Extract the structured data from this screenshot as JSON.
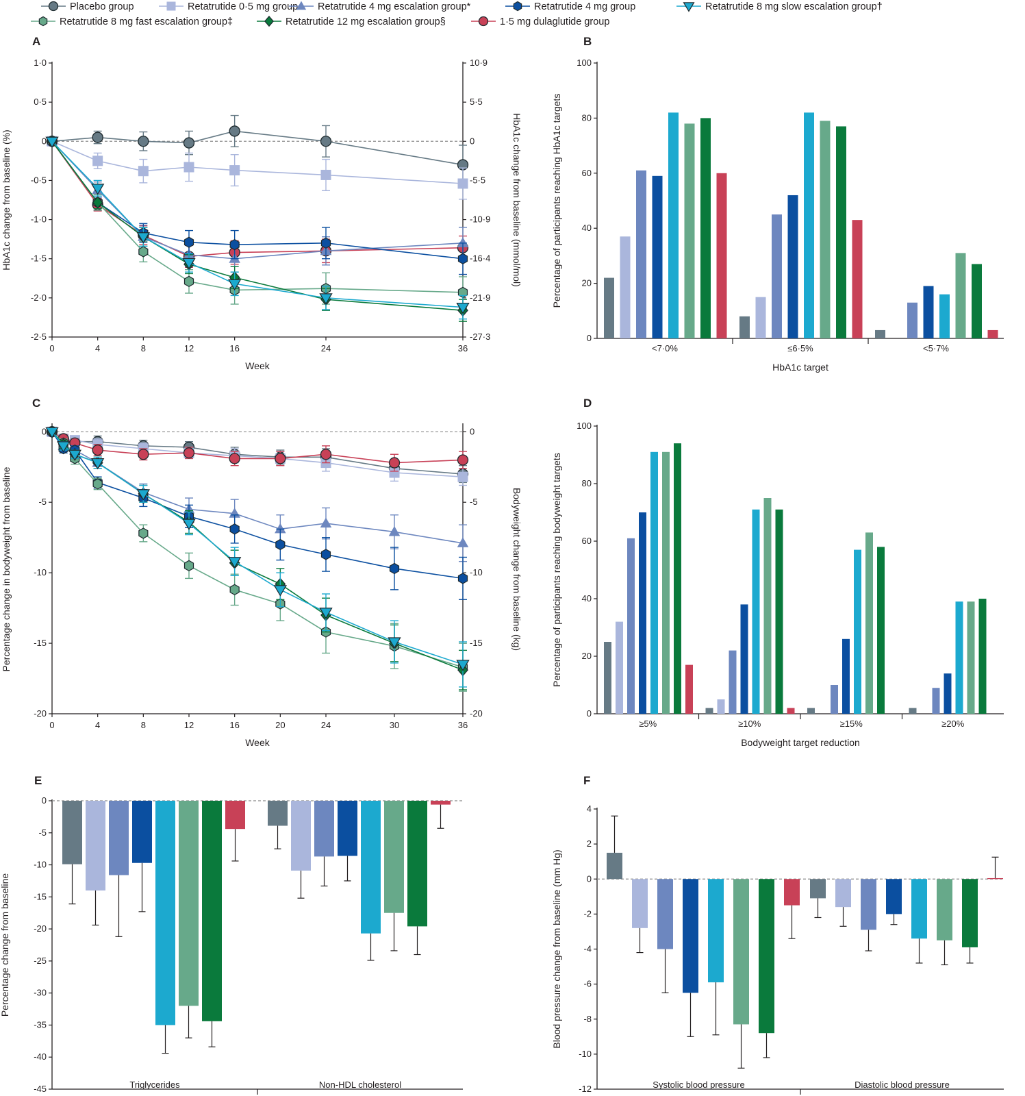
{
  "legend": [
    {
      "id": "placebo",
      "label": "Placebo group",
      "color": "#667a85",
      "marker": "circle"
    },
    {
      "id": "r05",
      "label": "Retatrutide 0·5 mg group",
      "color": "#aab6dc",
      "marker": "square"
    },
    {
      "id": "r4esc",
      "label": "Retatrutide 4 mg escalation group*",
      "color": "#6d87bf",
      "marker": "triangle-up"
    },
    {
      "id": "r4",
      "label": "Retatrutide 4 mg group",
      "color": "#0b4fa0",
      "marker": "hexagon"
    },
    {
      "id": "r8slow",
      "label": "Retatrutide 8 mg slow escalation group†",
      "color": "#1ca9cf",
      "marker": "triangle-down"
    },
    {
      "id": "r8fast",
      "label": "Retatrutide 8 mg fast escalation group‡",
      "color": "#67a98a",
      "marker": "hexagon"
    },
    {
      "id": "r12",
      "label": "Retatrutide 12 mg escalation group§",
      "color": "#0a7a3c",
      "marker": "diamond"
    },
    {
      "id": "dula",
      "label": "1·5 mg dulaglutide  group",
      "color": "#c84157",
      "marker": "circle"
    }
  ],
  "chart_data": [
    {
      "panel": "A",
      "type": "line",
      "xlabel": "Week",
      "ylabel": "HbA1c change from baseline (%)",
      "y2label": "HbA1c change from baseline (mmol/mol)",
      "x": [
        0,
        4,
        8,
        12,
        16,
        24,
        36
      ],
      "xticks": [
        "0",
        "4",
        "8",
        "12",
        "16",
        "24",
        "36"
      ],
      "yticks": [
        1.0,
        0.5,
        0,
        -0.5,
        -1.0,
        -1.5,
        -2.0,
        -2.5
      ],
      "yticklabels": [
        "1·0",
        "0·5",
        "0",
        "-0·5",
        "-1·0",
        "-1·5",
        "-2·0",
        "-2·5"
      ],
      "y2ticklabels": [
        "10·9",
        "5·5",
        "0",
        "-5·5",
        "-10·9",
        "-16·4",
        "-21·9",
        "-27·3"
      ],
      "ylim": [
        -2.5,
        1.0
      ],
      "series": [
        {
          "id": "placebo",
          "values": [
            0,
            0.05,
            0.0,
            -0.02,
            0.13,
            0.0,
            -0.3
          ],
          "err": [
            0,
            0.08,
            0.12,
            0.15,
            0.2,
            0.2,
            0.25
          ]
        },
        {
          "id": "r05",
          "values": [
            0,
            -0.25,
            -0.38,
            -0.33,
            -0.37,
            -0.43,
            -0.54
          ],
          "err": [
            0,
            0.1,
            0.15,
            0.18,
            0.2,
            0.2,
            0.2
          ]
        },
        {
          "id": "r4esc",
          "values": [
            0,
            -0.62,
            -1.22,
            -1.45,
            -1.5,
            -1.4,
            -1.3
          ],
          "err": [
            0,
            0.1,
            0.15,
            0.15,
            0.17,
            0.18,
            0.2
          ]
        },
        {
          "id": "r4",
          "values": [
            0,
            -0.78,
            -1.17,
            -1.29,
            -1.32,
            -1.3,
            -1.5
          ],
          "err": [
            0,
            0.1,
            0.12,
            0.15,
            0.18,
            0.2,
            0.2
          ]
        },
        {
          "id": "r8slow",
          "values": [
            0,
            -0.6,
            -1.22,
            -1.55,
            -1.82,
            -2.0,
            -2.12
          ],
          "err": [
            0,
            0.1,
            0.12,
            0.12,
            0.15,
            0.15,
            0.15
          ]
        },
        {
          "id": "r8fast",
          "values": [
            0,
            -0.78,
            -1.41,
            -1.79,
            -1.9,
            -1.88,
            -1.93
          ],
          "err": [
            0,
            0.1,
            0.13,
            0.15,
            0.18,
            0.2,
            0.2
          ]
        },
        {
          "id": "r12",
          "values": [
            0,
            -0.78,
            -1.22,
            -1.57,
            -1.74,
            -2.02,
            -2.16
          ],
          "err": [
            0,
            0.08,
            0.12,
            0.12,
            0.14,
            0.14,
            0.14
          ]
        },
        {
          "id": "dula",
          "values": [
            0,
            -0.81,
            -1.2,
            -1.47,
            -1.42,
            -1.4,
            -1.36
          ],
          "err": [
            0,
            0.08,
            0.12,
            0.14,
            0.15,
            0.15,
            0.15
          ]
        }
      ]
    },
    {
      "panel": "B",
      "type": "bar",
      "xlabel": "HbA1c target",
      "ylabel": "Percentage of participants reaching HbA1c targets",
      "categories": [
        "<7·0%",
        "≤6·5%",
        "<5·7%"
      ],
      "yticks": [
        0,
        20,
        40,
        60,
        80,
        100
      ],
      "ylim": [
        0,
        100
      ],
      "series": [
        {
          "id": "placebo",
          "values": [
            22,
            8,
            3
          ]
        },
        {
          "id": "r05",
          "values": [
            37,
            15,
            0
          ]
        },
        {
          "id": "r4esc",
          "values": [
            61,
            45,
            13
          ]
        },
        {
          "id": "r4",
          "values": [
            59,
            52,
            19
          ]
        },
        {
          "id": "r8slow",
          "values": [
            82,
            82,
            16
          ]
        },
        {
          "id": "r8fast",
          "values": [
            78,
            79,
            31
          ]
        },
        {
          "id": "r12",
          "values": [
            80,
            77,
            27
          ]
        },
        {
          "id": "dula",
          "values": [
            60,
            43,
            3
          ]
        }
      ]
    },
    {
      "panel": "C",
      "type": "line",
      "xlabel": "Week",
      "ylabel": "Percentage change in bodyweight from baseline",
      "y2label": "Bodyweight change from baseline (kg)",
      "x": [
        0,
        1,
        2,
        4,
        8,
        12,
        16,
        20,
        24,
        30,
        36
      ],
      "xticks": [
        "0",
        "4",
        "8",
        "12",
        "16",
        "20",
        "24",
        "30",
        "36"
      ],
      "xtickvalues": [
        0,
        4,
        8,
        12,
        16,
        20,
        24,
        30,
        36
      ],
      "yticks": [
        0,
        -5,
        -10,
        -15,
        -20
      ],
      "yticklabels": [
        "0",
        "-5",
        "-10",
        "-15",
        "-20"
      ],
      "y2ticklabels": [
        "0",
        "-5",
        "-10",
        "-15",
        "-20"
      ],
      "ylim": [
        -20,
        0.5
      ],
      "series": [
        {
          "id": "placebo",
          "values": [
            0,
            -0.5,
            -0.7,
            -0.7,
            -1.0,
            -1.1,
            -1.6,
            -1.8,
            -1.8,
            -2.6,
            -3.0
          ],
          "err": [
            0,
            0.3,
            0.3,
            0.4,
            0.4,
            0.4,
            0.5,
            0.5,
            0.6,
            0.6,
            0.6
          ]
        },
        {
          "id": "r05",
          "values": [
            0,
            -0.5,
            -0.6,
            -0.9,
            -1.2,
            -1.5,
            -1.7,
            -1.9,
            -2.2,
            -2.9,
            -3.2
          ],
          "err": [
            0,
            0.3,
            0.3,
            0.4,
            0.4,
            0.4,
            0.5,
            0.5,
            0.6,
            0.6,
            0.6
          ]
        },
        {
          "id": "r4esc",
          "values": [
            0,
            -1.0,
            -1.3,
            -2.2,
            -4.3,
            -5.5,
            -5.8,
            -6.9,
            -6.5,
            -7.1,
            -7.9
          ],
          "err": [
            0,
            0.3,
            0.3,
            0.4,
            0.6,
            0.8,
            1.0,
            1.0,
            1.1,
            1.2,
            1.3
          ]
        },
        {
          "id": "r4",
          "values": [
            0,
            -1.2,
            -1.3,
            -3.6,
            -4.7,
            -6.0,
            -6.9,
            -8.0,
            -8.7,
            -9.7,
            -10.4
          ],
          "err": [
            0,
            0.3,
            0.3,
            0.4,
            0.6,
            0.8,
            1.0,
            1.1,
            1.2,
            1.5,
            1.5
          ]
        },
        {
          "id": "r8slow",
          "values": [
            0,
            -1.0,
            -1.6,
            -2.2,
            -4.4,
            -6.5,
            -9.2,
            -11.2,
            -12.8,
            -14.9,
            -16.5
          ],
          "err": [
            0,
            0.3,
            0.3,
            0.4,
            0.6,
            0.8,
            1.0,
            1.2,
            1.3,
            1.5,
            1.6
          ]
        },
        {
          "id": "r8fast",
          "values": [
            0,
            -0.8,
            -1.9,
            -3.7,
            -7.2,
            -9.5,
            -11.2,
            -12.2,
            -14.2,
            -15.2,
            -16.7
          ],
          "err": [
            0,
            0.3,
            0.4,
            0.4,
            0.6,
            0.9,
            1.1,
            1.2,
            1.5,
            1.6,
            1.7
          ]
        },
        {
          "id": "r12",
          "values": [
            0,
            -0.9,
            -1.6,
            -2.2,
            -4.4,
            -6.4,
            -9.3,
            -10.8,
            -13.0,
            -15.0,
            -16.9
          ],
          "err": [
            0,
            0.3,
            0.3,
            0.4,
            0.6,
            0.8,
            0.9,
            1.1,
            1.2,
            1.3,
            1.4
          ]
        },
        {
          "id": "dula",
          "values": [
            0,
            -0.5,
            -0.8,
            -1.3,
            -1.6,
            -1.5,
            -1.9,
            -1.9,
            -1.6,
            -2.2,
            -2.0
          ],
          "err": [
            0,
            0.3,
            0.3,
            0.4,
            0.4,
            0.4,
            0.5,
            0.5,
            0.6,
            0.6,
            0.6
          ]
        }
      ]
    },
    {
      "panel": "D",
      "type": "bar",
      "xlabel": "Bodyweight target reduction",
      "ylabel": "Percentage of participants reaching bodyweight targets",
      "categories": [
        "≥5%",
        "≥10%",
        "≥15%",
        "≥20%"
      ],
      "yticks": [
        0,
        20,
        40,
        60,
        80,
        100
      ],
      "ylim": [
        0,
        100
      ],
      "series": [
        {
          "id": "placebo",
          "values": [
            25,
            2,
            2,
            2
          ]
        },
        {
          "id": "r05",
          "values": [
            32,
            5,
            0,
            0
          ]
        },
        {
          "id": "r4esc",
          "values": [
            61,
            22,
            10,
            9
          ]
        },
        {
          "id": "r4",
          "values": [
            70,
            38,
            26,
            14
          ]
        },
        {
          "id": "r8slow",
          "values": [
            91,
            71,
            57,
            39
          ]
        },
        {
          "id": "r8fast",
          "values": [
            91,
            75,
            63,
            39
          ]
        },
        {
          "id": "r12",
          "values": [
            94,
            71,
            58,
            40
          ]
        },
        {
          "id": "dula",
          "values": [
            17,
            2,
            0,
            0
          ]
        }
      ]
    },
    {
      "panel": "E",
      "type": "bar",
      "ylabel": "Percentage change from baseline",
      "categories": [
        "Triglycerides",
        "Non-HDL cholesterol"
      ],
      "yticks": [
        0,
        -5,
        -10,
        -15,
        -20,
        -25,
        -30,
        -35,
        -40,
        -45
      ],
      "ylim": [
        -45,
        0
      ],
      "series": [
        {
          "id": "placebo",
          "values": [
            -9.9,
            -3.9
          ],
          "err": [
            6.2,
            3.6
          ]
        },
        {
          "id": "r05",
          "values": [
            -14.0,
            -10.9
          ],
          "err": [
            5.4,
            4.3
          ]
        },
        {
          "id": "r4esc",
          "values": [
            -11.6,
            -8.7
          ],
          "err": [
            9.6,
            4.6
          ]
        },
        {
          "id": "r4",
          "values": [
            -9.7,
            -8.6
          ],
          "err": [
            7.6,
            3.9
          ]
        },
        {
          "id": "r8slow",
          "values": [
            -35.0,
            -20.7
          ],
          "err": [
            4.4,
            4.2
          ]
        },
        {
          "id": "r8fast",
          "values": [
            -32.0,
            -17.5
          ],
          "err": [
            5.0,
            5.9
          ]
        },
        {
          "id": "r12",
          "values": [
            -34.4,
            -19.6
          ],
          "err": [
            4.0,
            4.4
          ]
        },
        {
          "id": "dula",
          "values": [
            -4.4,
            -0.6
          ],
          "err": [
            5.0,
            3.7
          ]
        }
      ]
    },
    {
      "panel": "F",
      "type": "bar",
      "ylabel": "Blood pressure change from baseline (mm Hg)",
      "categories": [
        "Systolic blood pressure",
        "Diastolic blood pressure"
      ],
      "yticks": [
        4,
        2,
        0,
        -2,
        -4,
        -6,
        -8,
        -10,
        -12
      ],
      "ylim": [
        -12,
        4
      ],
      "series": [
        {
          "id": "placebo",
          "values": [
            1.5,
            -1.1
          ],
          "err": [
            2.1,
            1.1
          ]
        },
        {
          "id": "r05",
          "values": [
            -2.8,
            -1.6
          ],
          "err": [
            1.4,
            1.1
          ]
        },
        {
          "id": "r4esc",
          "values": [
            -4.0,
            -2.9
          ],
          "err": [
            2.5,
            1.2
          ]
        },
        {
          "id": "r4",
          "values": [
            -6.5,
            -2.0
          ],
          "err": [
            2.5,
            0.6
          ]
        },
        {
          "id": "r8slow",
          "values": [
            -5.9,
            -3.4
          ],
          "err": [
            3.0,
            1.4
          ]
        },
        {
          "id": "r8fast",
          "values": [
            -8.3,
            -3.5
          ],
          "err": [
            2.5,
            1.4
          ]
        },
        {
          "id": "r12",
          "values": [
            -8.8,
            -3.9
          ],
          "err": [
            1.4,
            0.9
          ]
        },
        {
          "id": "dula",
          "values": [
            -1.5,
            0.05
          ],
          "err": [
            1.9,
            1.2
          ]
        }
      ]
    }
  ]
}
